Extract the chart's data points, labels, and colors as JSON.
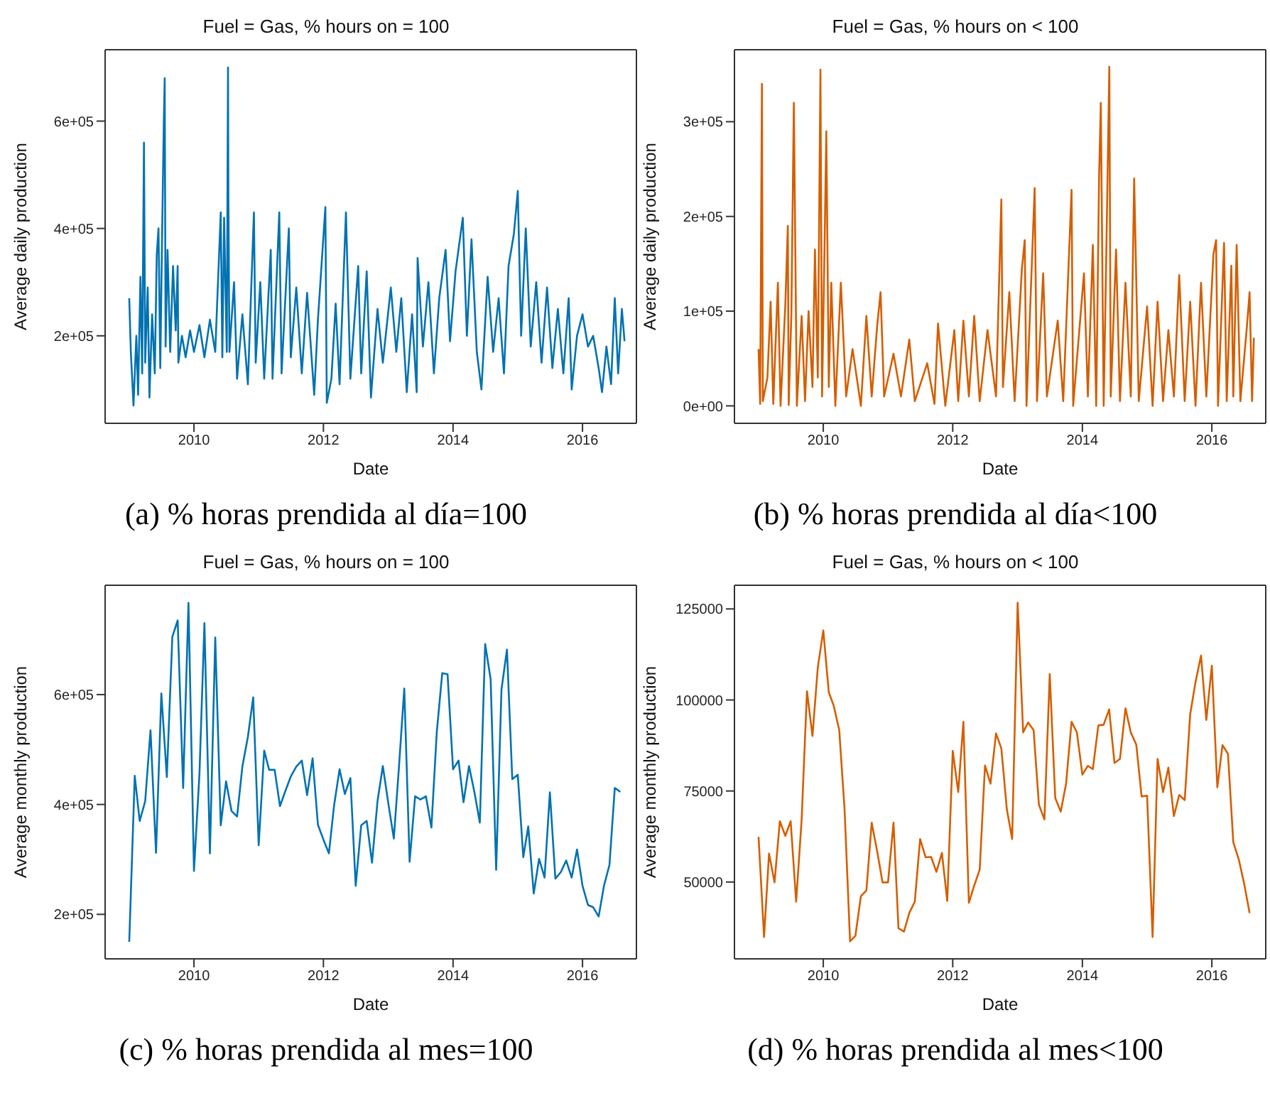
{
  "chart_data": [
    {
      "type": "line",
      "title": "Fuel = Gas, % hours on = 100",
      "xlabel": "Date",
      "ylabel": "Average daily production",
      "annotations": [
        "(a) % horas prendida al día=100"
      ],
      "xlim": [
        "2008-08-18",
        "2016-10-31"
      ],
      "xticks": [
        "2010",
        "2012",
        "2014",
        "2016"
      ],
      "ylim": [
        37000,
        733000
      ],
      "yticks": [
        {
          "value": 200000,
          "label": "2e+05"
        },
        {
          "value": 400000,
          "label": "4e+05"
        },
        {
          "value": 600000,
          "label": "6e+05"
        }
      ],
      "x": [
        "2009-01-01",
        "2009-01-10",
        "2009-01-25",
        "2009-02-10",
        "2009-02-20",
        "2009-03-05",
        "2009-03-15",
        "2009-03-25",
        "2009-04-01",
        "2009-04-15",
        "2009-04-25",
        "2009-05-10",
        "2009-05-25",
        "2009-06-05",
        "2009-06-15",
        "2009-06-25",
        "2009-07-05",
        "2009-07-15",
        "2009-07-20",
        "2009-07-25",
        "2009-08-05",
        "2009-08-20",
        "2009-09-05",
        "2009-09-20",
        "2009-10-01",
        "2009-10-05",
        "2009-10-25",
        "2009-11-15",
        "2009-12-10",
        "2010-01-01",
        "2010-02-01",
        "2010-03-01",
        "2010-04-01",
        "2010-05-01",
        "2010-06-01",
        "2010-06-10",
        "2010-06-20",
        "2010-07-05",
        "2010-07-12",
        "2010-07-14",
        "2010-07-20",
        "2010-08-15",
        "2010-09-01",
        "2010-10-01",
        "2010-11-01",
        "2010-12-05",
        "2010-12-15",
        "2011-01-10",
        "2011-02-01",
        "2011-03-10",
        "2011-03-20",
        "2011-04-27",
        "2011-05-10",
        "2011-06-20",
        "2011-07-01",
        "2011-08-01",
        "2011-09-01",
        "2011-10-01",
        "2011-11-10",
        "2011-12-01",
        "2012-01-12",
        "2012-01-20",
        "2012-02-15",
        "2012-03-10",
        "2012-04-01",
        "2012-05-07",
        "2012-06-01",
        "2012-07-15",
        "2012-08-01",
        "2012-09-01",
        "2012-09-25",
        "2012-11-01",
        "2012-12-01",
        "2013-01-15",
        "2013-02-15",
        "2013-03-15",
        "2013-04-15",
        "2013-05-15",
        "2013-06-10",
        "2013-06-15",
        "2013-07-15",
        "2013-08-15",
        "2013-09-15",
        "2013-10-15",
        "2013-11-20",
        "2013-12-15",
        "2014-01-15",
        "2014-02-25",
        "2014-03-20",
        "2014-04-15",
        "2014-05-15",
        "2014-06-10",
        "2014-07-15",
        "2014-08-15",
        "2014-09-15",
        "2014-10-15",
        "2014-11-10",
        "2014-12-10",
        "2015-01-01",
        "2015-01-20",
        "2015-02-15",
        "2015-03-15",
        "2015-04-15",
        "2015-05-15",
        "2015-06-15",
        "2015-07-15",
        "2015-08-15",
        "2015-09-15",
        "2015-10-15",
        "2015-11-01",
        "2015-12-01",
        "2016-01-01",
        "2016-02-01",
        "2016-03-01",
        "2016-04-01",
        "2016-04-20",
        "2016-05-15",
        "2016-06-10",
        "2016-07-01",
        "2016-07-20",
        "2016-08-10",
        "2016-08-25"
      ],
      "series": [
        {
          "color": "#0072b2",
          "values": [
            270000,
            170000,
            70000,
            200000,
            90000,
            310000,
            130000,
            560000,
            150000,
            290000,
            85000,
            240000,
            130000,
            350000,
            400000,
            140000,
            380000,
            600000,
            680000,
            180000,
            360000,
            170000,
            330000,
            210000,
            330000,
            150000,
            200000,
            160000,
            210000,
            170000,
            220000,
            160000,
            230000,
            170000,
            430000,
            160000,
            420000,
            170000,
            700000,
            460000,
            170000,
            300000,
            120000,
            240000,
            110000,
            430000,
            150000,
            300000,
            120000,
            360000,
            120000,
            430000,
            130000,
            400000,
            160000,
            290000,
            130000,
            280000,
            90000,
            230000,
            440000,
            75000,
            120000,
            260000,
            110000,
            430000,
            120000,
            330000,
            130000,
            320000,
            85000,
            250000,
            150000,
            290000,
            170000,
            270000,
            95000,
            240000,
            95000,
            345000,
            180000,
            300000,
            130000,
            270000,
            360000,
            190000,
            320000,
            420000,
            200000,
            380000,
            170000,
            100000,
            310000,
            170000,
            270000,
            130000,
            330000,
            390000,
            470000,
            200000,
            400000,
            180000,
            300000,
            150000,
            290000,
            140000,
            250000,
            130000,
            270000,
            100000,
            200000,
            240000,
            180000,
            200000,
            140000,
            95000,
            180000,
            110000,
            270000,
            130000,
            250000,
            190000
          ]
        }
      ]
    },
    {
      "type": "line",
      "title": "Fuel = Gas, % hours on < 100",
      "xlabel": "Date",
      "ylabel": "Average daily production",
      "annotations": [
        "(b) % horas prendida al día<100"
      ],
      "xlim": [
        "2008-08-18",
        "2016-10-31"
      ],
      "xticks": [
        "2010",
        "2012",
        "2014",
        "2016"
      ],
      "ylim": [
        -18400,
        376000
      ],
      "yticks": [
        {
          "value": 0,
          "label": "0e+00"
        },
        {
          "value": 100000,
          "label": "1e+05"
        },
        {
          "value": 200000,
          "label": "2e+05"
        },
        {
          "value": 300000,
          "label": "3e+05"
        }
      ],
      "x": [
        "2009-01-01",
        "2009-01-10",
        "2009-01-20",
        "2009-01-25",
        "2009-02-20",
        "2009-03-10",
        "2009-03-25",
        "2009-04-20",
        "2009-05-05",
        "2009-06-01",
        "2009-06-15",
        "2009-06-20",
        "2009-07-05",
        "2009-07-19",
        "2009-08-05",
        "2009-09-01",
        "2009-09-20",
        "2009-10-10",
        "2009-11-01",
        "2009-11-15",
        "2009-12-01",
        "2009-12-16",
        "2009-12-25",
        "2010-01-10",
        "2010-01-18",
        "2010-02-01",
        "2010-02-15",
        "2010-03-10",
        "2010-04-10",
        "2010-05-10",
        "2010-06-15",
        "2010-08-01",
        "2010-09-01",
        "2010-10-01",
        "2010-11-01",
        "2010-11-20",
        "2010-12-10",
        "2011-02-01",
        "2011-03-15",
        "2011-05-01",
        "2011-06-01",
        "2011-08-10",
        "2011-09-20",
        "2011-10-10",
        "2011-11-20",
        "2012-01-10",
        "2012-02-01",
        "2012-03-01",
        "2012-04-01",
        "2012-05-01",
        "2012-06-01",
        "2012-07-15",
        "2012-09-01",
        "2012-10-01",
        "2012-10-10",
        "2012-11-15",
        "2012-12-15",
        "2013-01-25",
        "2013-02-10",
        "2013-02-20",
        "2013-04-07",
        "2013-04-20",
        "2013-05-25",
        "2013-06-15",
        "2013-08-15",
        "2013-09-15",
        "2013-11-01",
        "2013-11-10",
        "2014-01-10",
        "2014-02-01",
        "2014-03-01",
        "2014-03-20",
        "2014-04-05",
        "2014-04-15",
        "2014-05-01",
        "2014-05-15",
        "2014-06-02",
        "2014-06-10",
        "2014-07-10",
        "2014-08-01",
        "2014-09-01",
        "2014-10-01",
        "2014-10-20",
        "2014-11-15",
        "2015-01-01",
        "2015-02-01",
        "2015-03-01",
        "2015-04-01",
        "2015-05-01",
        "2015-06-01",
        "2015-07-01",
        "2015-08-01",
        "2015-09-01",
        "2015-10-01",
        "2015-11-01",
        "2015-12-01",
        "2016-01-10",
        "2016-01-25",
        "2016-02-05",
        "2016-03-10",
        "2016-03-25",
        "2016-04-20",
        "2016-05-01",
        "2016-05-20",
        "2016-06-10",
        "2016-07-15",
        "2016-08-01",
        "2016-08-15",
        "2016-08-25"
      ],
      "series": [
        {
          "color": "#d55e00",
          "values": [
            60000,
            2000,
            340000,
            5000,
            30000,
            110000,
            2000,
            130000,
            0,
            107000,
            190000,
            1000,
            97000,
            320000,
            0,
            95000,
            5000,
            100000,
            20000,
            165000,
            30000,
            355000,
            10000,
            190000,
            290000,
            20000,
            130000,
            0,
            130000,
            10000,
            60000,
            0,
            95000,
            10000,
            85000,
            120000,
            10000,
            55000,
            10000,
            70000,
            5000,
            45000,
            2000,
            87000,
            0,
            80000,
            5000,
            90000,
            10000,
            95000,
            5000,
            80000,
            10000,
            218000,
            20000,
            120000,
            5000,
            145000,
            175000,
            0,
            230000,
            5000,
            140000,
            10000,
            90000,
            5000,
            228000,
            0,
            140000,
            10000,
            170000,
            0,
            240000,
            320000,
            0,
            150000,
            358000,
            10000,
            165000,
            5000,
            130000,
            10000,
            240000,
            5000,
            105000,
            0,
            110000,
            5000,
            80000,
            10000,
            138000,
            5000,
            110000,
            0,
            130000,
            10000,
            160000,
            175000,
            0,
            172000,
            5000,
            148000,
            10000,
            170000,
            5000,
            80000,
            120000,
            5000,
            72000
          ]
        }
      ]
    },
    {
      "type": "line",
      "title": "Fuel = Gas, % hours on = 100",
      "xlabel": "Date",
      "ylabel": "Average monthly production",
      "annotations": [
        "(c) % horas prendida al mes=100"
      ],
      "xlim": [
        "2008-08-18",
        "2016-10-31"
      ],
      "xticks": [
        "2010",
        "2012",
        "2014",
        "2016"
      ],
      "ylim": [
        119000,
        799000
      ],
      "yticks": [
        {
          "value": 200000,
          "label": "2e+05"
        },
        {
          "value": 400000,
          "label": "4e+05"
        },
        {
          "value": 600000,
          "label": "6e+05"
        }
      ],
      "x": [
        "2009-01",
        "2009-02",
        "2009-03",
        "2009-04",
        "2009-05",
        "2009-06",
        "2009-07",
        "2009-08",
        "2009-09",
        "2009-10",
        "2009-11",
        "2009-12",
        "2010-01",
        "2010-02",
        "2010-03",
        "2010-04",
        "2010-05",
        "2010-06",
        "2010-07",
        "2010-08",
        "2010-09",
        "2010-10",
        "2010-11",
        "2010-12",
        "2011-01",
        "2011-02",
        "2011-03",
        "2011-04",
        "2011-05",
        "2011-06",
        "2011-07",
        "2011-08",
        "2011-09",
        "2011-10",
        "2011-11",
        "2011-12",
        "2012-01",
        "2012-02",
        "2012-03",
        "2012-04",
        "2012-05",
        "2012-06",
        "2012-07",
        "2012-08",
        "2012-09",
        "2012-10",
        "2012-11",
        "2012-12",
        "2013-01",
        "2013-02",
        "2013-03",
        "2013-04",
        "2013-05",
        "2013-06",
        "2013-07",
        "2013-08",
        "2013-09",
        "2013-10",
        "2013-11",
        "2013-12",
        "2014-01",
        "2014-02",
        "2014-03",
        "2014-04",
        "2014-05",
        "2014-06",
        "2014-07",
        "2014-08",
        "2014-09",
        "2014-10",
        "2014-11",
        "2014-12",
        "2015-01",
        "2015-02",
        "2015-03",
        "2015-04",
        "2015-05",
        "2015-06",
        "2015-07",
        "2015-08",
        "2015-09",
        "2015-10",
        "2015-11",
        "2015-12",
        "2016-01",
        "2016-02",
        "2016-03",
        "2016-04",
        "2016-05",
        "2016-06",
        "2016-07",
        "2016-08"
      ],
      "series": [
        {
          "color": "#0072b2",
          "values": [
            150000,
            452000,
            370000,
            406000,
            535000,
            312000,
            602000,
            450000,
            705000,
            735000,
            430000,
            767000,
            279000,
            456000,
            730000,
            311000,
            704000,
            362000,
            442000,
            388000,
            378000,
            469000,
            523000,
            595000,
            326000,
            498000,
            463000,
            463000,
            397000,
            425000,
            451000,
            469000,
            480000,
            417000,
            484000,
            363000,
            336000,
            311000,
            398000,
            464000,
            419000,
            448000,
            252000,
            362000,
            370000,
            294000,
            406000,
            470000,
            402000,
            338000,
            464000,
            611000,
            296000,
            415000,
            409000,
            415000,
            358000,
            531000,
            639000,
            637000,
            464000,
            480000,
            404000,
            470000,
            423000,
            367000,
            692000,
            628000,
            281000,
            609000,
            682000,
            446000,
            454000,
            304000,
            360000,
            238000,
            301000,
            267000,
            422000,
            265000,
            277000,
            298000,
            267000,
            318000,
            252000,
            217000,
            213000,
            196000,
            252000,
            290000,
            430000,
            423000
          ]
        }
      ]
    },
    {
      "type": "line",
      "title": "Fuel = Gas, % hours on < 100",
      "xlabel": "Date",
      "ylabel": "Average monthly production",
      "annotations": [
        "(d) % horas prendida al mes<100"
      ],
      "xlim": [
        "2008-08-18",
        "2016-10-31"
      ],
      "xticks": [
        "2010",
        "2012",
        "2014",
        "2016"
      ],
      "ylim": [
        28900,
        131500
      ],
      "yticks": [
        50000,
        75000,
        100000,
        125000
      ],
      "x": [
        "2009-01",
        "2009-02",
        "2009-03",
        "2009-04",
        "2009-05",
        "2009-06",
        "2009-07",
        "2009-08",
        "2009-09",
        "2009-10",
        "2009-11",
        "2009-12",
        "2010-01",
        "2010-02",
        "2010-03",
        "2010-04",
        "2010-05",
        "2010-06",
        "2010-07",
        "2010-08",
        "2010-09",
        "2010-10",
        "2010-11",
        "2010-12",
        "2011-01",
        "2011-02",
        "2011-03",
        "2011-04",
        "2011-05",
        "2011-06",
        "2011-07",
        "2011-08",
        "2011-09",
        "2011-10",
        "2011-11",
        "2011-12",
        "2012-01",
        "2012-02",
        "2012-03",
        "2012-04",
        "2012-05",
        "2012-06",
        "2012-07",
        "2012-08",
        "2012-09",
        "2012-10",
        "2012-11",
        "2012-12",
        "2013-01",
        "2013-02",
        "2013-03",
        "2013-04",
        "2013-05",
        "2013-06",
        "2013-07",
        "2013-08",
        "2013-09",
        "2013-10",
        "2013-11",
        "2013-12",
        "2014-01",
        "2014-02",
        "2014-03",
        "2014-04",
        "2014-05",
        "2014-06",
        "2014-07",
        "2014-08",
        "2014-09",
        "2014-10",
        "2014-11",
        "2014-12",
        "2015-01",
        "2015-02",
        "2015-03",
        "2015-04",
        "2015-05",
        "2015-06",
        "2015-07",
        "2015-08",
        "2015-09",
        "2015-10",
        "2015-11",
        "2015-12",
        "2016-01",
        "2016-02",
        "2016-03",
        "2016-04",
        "2016-05",
        "2016-06",
        "2016-07",
        "2016-08"
      ],
      "series": [
        {
          "color": "#d55e00",
          "values": [
            62400,
            34900,
            57800,
            49900,
            66700,
            62700,
            66700,
            44600,
            67200,
            102400,
            90100,
            108900,
            119100,
            102100,
            98400,
            91700,
            70000,
            33700,
            35200,
            46100,
            47700,
            66300,
            58400,
            49900,
            49900,
            66300,
            37300,
            36400,
            41500,
            44600,
            61800,
            56800,
            56900,
            52800,
            58000,
            44800,
            86000,
            74700,
            94000,
            44300,
            49000,
            53400,
            82000,
            77000,
            90800,
            86700,
            70000,
            61800,
            126700,
            91100,
            93800,
            91700,
            71200,
            67200,
            107100,
            73100,
            69300,
            77000,
            94000,
            91100,
            79500,
            81900,
            81000,
            93000,
            93200,
            97400,
            82700,
            83800,
            97700,
            91100,
            87700,
            73500,
            73700,
            34900,
            83800,
            74700,
            81400,
            68100,
            73900,
            72500,
            96100,
            104900,
            112200,
            94500,
            109400,
            76000,
            87600,
            85200,
            60900,
            56200,
            49600,
            41500
          ]
        }
      ]
    }
  ]
}
